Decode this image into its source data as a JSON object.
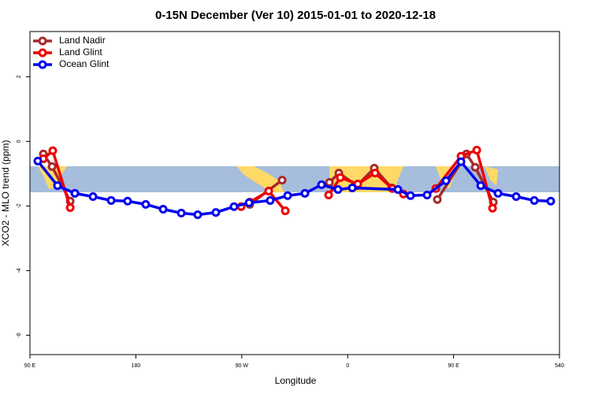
{
  "chart_data": {
    "type": "line",
    "title": "0-15N December (Ver 10)   2015-01-01 to 2020-12-18",
    "xlabel": "Longitude",
    "ylabel": "XCO2 - MLO trend (ppm)",
    "xlim": [
      90,
      540
    ],
    "ylim": [
      -6.6,
      3.4
    ],
    "xticks": [
      {
        "value": 90,
        "label": "90 E"
      },
      180,
      {
        "value": 270,
        "label": "90 W"
      },
      {
        "value": 360,
        "label": "0"
      },
      {
        "value": 450,
        "label": "90 E"
      },
      540
    ],
    "yticks": [
      2,
      0,
      -2,
      -4,
      -6
    ],
    "legend": "top-left",
    "series": [
      {
        "name": "Land Nadir",
        "color": "#a52a2a",
        "x": [
          101.4,
          108.8,
          124.2,
          null,
          276.8,
          304.3,
          null,
          344.5,
          352.5,
          367.9,
          382.6,
          397.4,
          null,
          436.2,
          461.0,
          468.4,
          483.8
        ],
        "values": [
          -0.39,
          -0.78,
          -1.85,
          null,
          -1.95,
          -1.2,
          null,
          -1.27,
          -0.98,
          -1.37,
          -0.83,
          -1.44,
          null,
          -1.8,
          -0.39,
          -0.8,
          -1.88
        ]
      },
      {
        "name": "Land Glint",
        "color": "#ee0000",
        "x": [
          101.4,
          109.4,
          124.2,
          null,
          269.5,
          276.8,
          292.9,
          307.0,
          null,
          343.8,
          353.8,
          368.6,
          383.3,
          398.0,
          407.4,
          null,
          434.9,
          456.3,
          469.7,
          483.1
        ],
        "values": [
          -0.54,
          -0.29,
          -2.05,
          null,
          -2.02,
          -1.88,
          -1.54,
          -2.15,
          null,
          -1.66,
          -1.12,
          -1.32,
          -0.98,
          -1.46,
          -1.63,
          null,
          -1.46,
          -0.46,
          -0.27,
          -2.07
        ]
      },
      {
        "name": "Ocean Glint",
        "color": "#0000ee",
        "x": [
          96.7,
          113.4,
          128.2,
          143.6,
          159.0,
          173.0,
          188.4,
          203.2,
          218.6,
          232.6,
          248.0,
          263.4,
          276.2,
          294.2,
          309.0,
          323.7,
          337.8,
          351.8,
          363.9,
          402.7,
          413.4,
          427.5,
          443.6,
          456.3,
          473.1,
          487.8,
          503.2,
          518.6,
          532.6
        ],
        "values": [
          -0.61,
          -1.37,
          -1.61,
          -1.71,
          -1.83,
          -1.85,
          -1.95,
          -2.1,
          -2.22,
          -2.27,
          -2.2,
          -2.02,
          -1.9,
          -1.83,
          -1.68,
          -1.61,
          -1.34,
          -1.49,
          -1.44,
          -1.49,
          -1.68,
          -1.66,
          -1.22,
          -0.63,
          -1.37,
          -1.61,
          -1.71,
          -1.83,
          -1.85
        ]
      }
    ]
  }
}
